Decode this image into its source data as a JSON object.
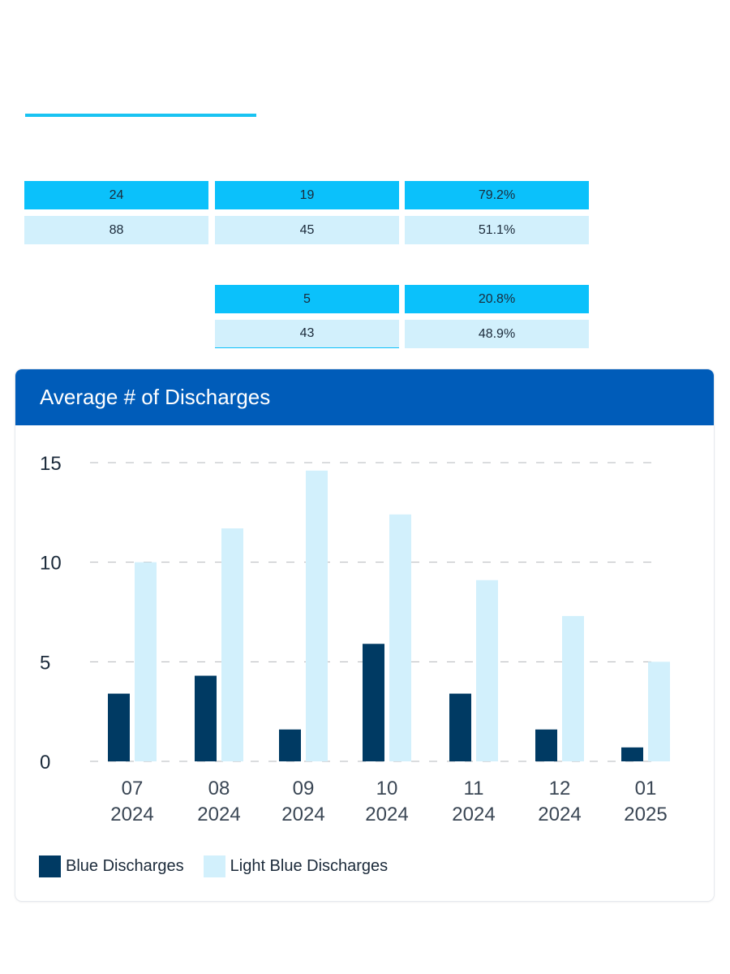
{
  "colors": {
    "accent_rule": "#19c3f2",
    "row_bright": "#0bc1fb",
    "row_pale": "#d2f0fc",
    "card_header": "#005cb9",
    "series_dark": "#003a63",
    "series_light": "#d2f0fc"
  },
  "tables": {
    "upper": [
      [
        "24",
        "19",
        "79.2%"
      ],
      [
        "88",
        "45",
        "51.1%"
      ]
    ],
    "lower": [
      [
        "5",
        "20.8%"
      ],
      [
        "43",
        "48.9%"
      ]
    ]
  },
  "card": {
    "title": "Average # of Discharges"
  },
  "chart_data": {
    "type": "bar",
    "title": "Average # of Discharges",
    "categories": [
      [
        "07",
        "2024"
      ],
      [
        "08",
        "2024"
      ],
      [
        "09",
        "2024"
      ],
      [
        "10",
        "2024"
      ],
      [
        "11",
        "2024"
      ],
      [
        "12",
        "2024"
      ],
      [
        "01",
        "2025"
      ]
    ],
    "series": [
      {
        "name": "Blue Discharges",
        "color": "#003a63",
        "values": [
          3.4,
          4.3,
          1.6,
          5.9,
          3.4,
          1.6,
          0.7
        ]
      },
      {
        "name": "Light Blue Discharges",
        "color": "#d2f0fc",
        "values": [
          10.0,
          11.7,
          14.6,
          12.4,
          9.1,
          7.3,
          5.0
        ]
      }
    ],
    "yticks": [
      0,
      5,
      10,
      15
    ],
    "ylim": [
      0,
      15
    ],
    "grid": "dashed horizontal",
    "legend": "bottom-left"
  }
}
